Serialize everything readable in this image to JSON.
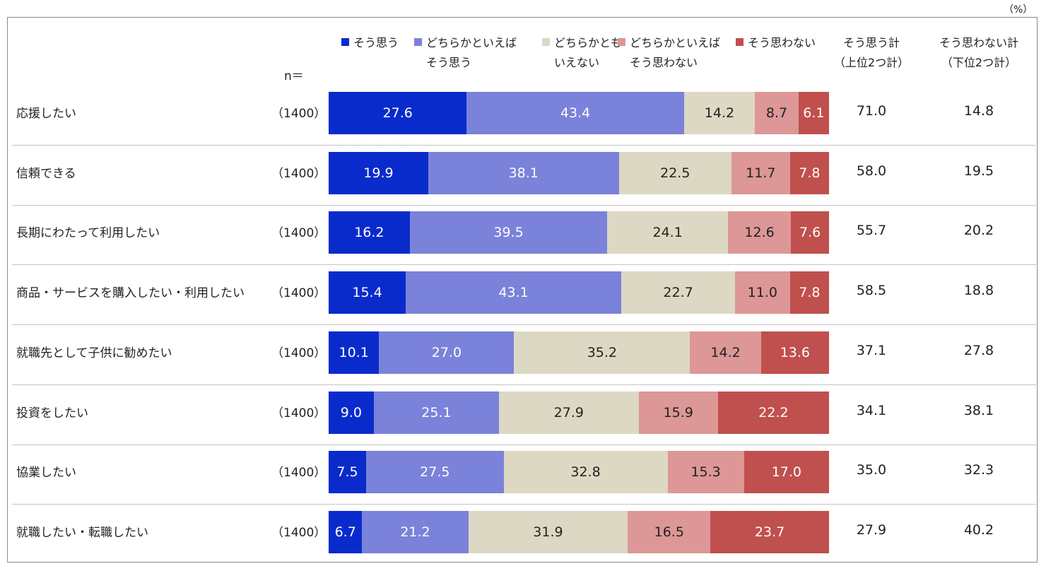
{
  "unit_label": "（%）",
  "n_header": "n＝",
  "legend": [
    {
      "l1": "そう思う",
      "l2": "",
      "color": "#0a2bcc"
    },
    {
      "l1": "どちらかといえば",
      "l2": "そう思う",
      "color": "#7b82d9"
    },
    {
      "l1": "どちらかとも",
      "l2": "いえない",
      "color": "#ddd8c3"
    },
    {
      "l1": "どちらかといえば",
      "l2": "そう思わない",
      "color": "#dc9796"
    },
    {
      "l1": "そう思わない",
      "l2": "",
      "color": "#c0504d"
    }
  ],
  "total_headers": {
    "top2_l1": "そう思う計",
    "top2_l2": "（上位2つ計）",
    "bottom2_l1": "そう思わない計",
    "bottom2_l2": "（下位2つ計）"
  },
  "chart_data": {
    "type": "bar",
    "orientation": "horizontal-stacked-100",
    "series_names": [
      "そう思う",
      "どちらかといえばそう思う",
      "どちらかともいえない",
      "どちらかといえばそう思わない",
      "そう思わない"
    ],
    "text_colors": [
      "#ffffff",
      "#ffffff",
      "#222222",
      "#222222",
      "#ffffff"
    ],
    "rows": [
      {
        "label": "応援したい",
        "n": "（1400）",
        "values": [
          27.6,
          43.4,
          14.2,
          8.7,
          6.1
        ],
        "top2": "71.0",
        "bottom2": "14.8"
      },
      {
        "label": "信頼できる",
        "n": "（1400）",
        "values": [
          19.9,
          38.1,
          22.5,
          11.7,
          7.8
        ],
        "top2": "58.0",
        "bottom2": "19.5"
      },
      {
        "label": "長期にわたって利用したい",
        "n": "（1400）",
        "values": [
          16.2,
          39.5,
          24.1,
          12.6,
          7.6
        ],
        "top2": "55.7",
        "bottom2": "20.2"
      },
      {
        "label": "商品・サービスを購入したい・利用したい",
        "n": "（1400）",
        "values": [
          15.4,
          43.1,
          22.7,
          11.0,
          7.8
        ],
        "top2": "58.5",
        "bottom2": "18.8"
      },
      {
        "label": "就職先として子供に勧めたい",
        "n": "（1400）",
        "values": [
          10.1,
          27.0,
          35.2,
          14.2,
          13.6
        ],
        "top2": "37.1",
        "bottom2": "27.8"
      },
      {
        "label": "投資をしたい",
        "n": "（1400）",
        "values": [
          9.0,
          25.1,
          27.9,
          15.9,
          22.2
        ],
        "top2": "34.1",
        "bottom2": "38.1"
      },
      {
        "label": "協業したい",
        "n": "（1400）",
        "values": [
          7.5,
          27.5,
          32.8,
          15.3,
          17.0
        ],
        "top2": "35.0",
        "bottom2": "32.3"
      },
      {
        "label": "就職したい・転職したい",
        "n": "（1400）",
        "values": [
          6.7,
          21.2,
          31.9,
          16.5,
          23.7
        ],
        "top2": "27.9",
        "bottom2": "40.2"
      }
    ]
  }
}
